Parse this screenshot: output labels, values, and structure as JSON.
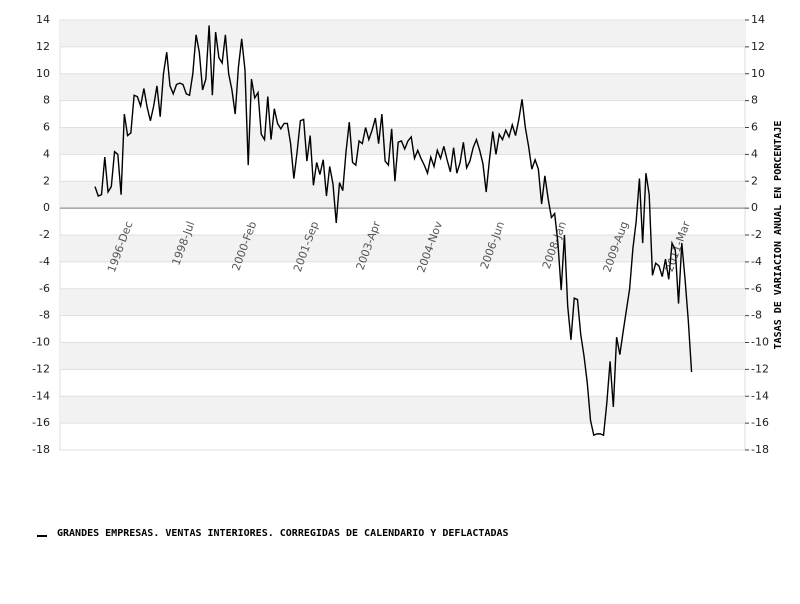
{
  "chart_data": {
    "type": "line",
    "y_axis_label": "TASAS DE VARIACION ANUAL EN PORCENTAJE",
    "categories": [
      null,
      null,
      null,
      null,
      null,
      null,
      null,
      "1996-Dec",
      null,
      null,
      null,
      null,
      null,
      null,
      null,
      null,
      null,
      null,
      null,
      null,
      null,
      null,
      null,
      null,
      null,
      null,
      "1998-Jul",
      null,
      null,
      null,
      null,
      null,
      null,
      null,
      null,
      null,
      null,
      null,
      null,
      null,
      null,
      null,
      null,
      null,
      null,
      "2000-Feb",
      null,
      null,
      null,
      null,
      null,
      null,
      null,
      null,
      null,
      null,
      null,
      null,
      null,
      null,
      null,
      null,
      null,
      null,
      "2001-Sep",
      null,
      null,
      null,
      null,
      null,
      null,
      null,
      null,
      null,
      null,
      null,
      null,
      null,
      null,
      null,
      null,
      null,
      null,
      "2003-Apr",
      null,
      null,
      null,
      null,
      null,
      null,
      null,
      null,
      null,
      null,
      null,
      null,
      null,
      null,
      null,
      null,
      null,
      null,
      "2004-Nov",
      null,
      null,
      null,
      null,
      null,
      null,
      null,
      null,
      null,
      null,
      null,
      null,
      null,
      null,
      null,
      null,
      null,
      null,
      "2006-Jun",
      null,
      null,
      null,
      null,
      null,
      null,
      null,
      null,
      null,
      null,
      null,
      null,
      null,
      null,
      null,
      null,
      null,
      null,
      "2008-Jan",
      null,
      null,
      null,
      null,
      null,
      null,
      null,
      null,
      null,
      null,
      null,
      null,
      null,
      null,
      null,
      null,
      null,
      null,
      "2009-Aug",
      null,
      null,
      null,
      null,
      null,
      null,
      null,
      null,
      null,
      null,
      null,
      null,
      null,
      null,
      null,
      null,
      null,
      null,
      "2011-Mar",
      null,
      null,
      null,
      null,
      null
    ],
    "series": [
      {
        "name": "GRANDES EMPRESAS. VENTAS INTERIORES. CORREGIDAS DE CALENDARIO Y DEFLACTADAS",
        "color": "#000000",
        "values": [
          1.6,
          0.9,
          1.0,
          3.8,
          1.2,
          1.6,
          4.2,
          4.0,
          1.0,
          7.0,
          5.4,
          5.6,
          8.4,
          8.3,
          7.6,
          8.9,
          7.5,
          6.5,
          7.6,
          9.1,
          6.8,
          10.0,
          11.6,
          9.1,
          8.5,
          9.2,
          9.3,
          9.2,
          8.5,
          8.4,
          10.0,
          12.9,
          11.6,
          8.8,
          9.6,
          13.6,
          8.4,
          13.1,
          11.2,
          10.8,
          12.9,
          10.0,
          8.8,
          7.0,
          10.5,
          12.6,
          10.3,
          3.2,
          9.6,
          8.2,
          8.6,
          5.5,
          5.1,
          8.3,
          5.1,
          7.4,
          6.3,
          5.9,
          6.3,
          6.3,
          4.8,
          2.2,
          4.2,
          6.5,
          6.6,
          3.5,
          5.4,
          1.7,
          3.4,
          2.5,
          3.6,
          0.9,
          3.1,
          1.8,
          -1.1,
          1.9,
          1.3,
          4.2,
          6.4,
          3.4,
          3.2,
          5.0,
          4.8,
          6.0,
          5.1,
          5.8,
          6.7,
          4.8,
          7.0,
          3.5,
          3.2,
          5.9,
          2.0,
          4.9,
          5.0,
          4.4,
          5.0,
          5.3,
          3.7,
          4.3,
          3.7,
          3.2,
          2.6,
          3.8,
          3.1,
          4.3,
          3.7,
          4.6,
          3.6,
          2.7,
          4.5,
          2.6,
          3.4,
          4.9,
          3.0,
          3.5,
          4.5,
          5.1,
          4.3,
          3.3,
          1.2,
          3.6,
          5.7,
          4.0,
          5.5,
          5.1,
          5.8,
          5.3,
          6.2,
          5.4,
          6.6,
          8.1,
          6.0,
          4.6,
          2.9,
          3.6,
          2.9,
          0.3,
          2.4,
          0.7,
          -0.7,
          -0.4,
          -2.6,
          -6.1,
          -2.0,
          -7.3,
          -9.8,
          -6.7,
          -6.8,
          -9.4,
          -11.0,
          -13.0,
          -15.8,
          -16.9,
          -16.8,
          -16.8,
          -16.9,
          -14.5,
          -11.4,
          -14.8,
          -9.6,
          -10.9,
          -9.2,
          -7.6,
          -6.0,
          -3.0,
          -1.0,
          2.2,
          -2.6,
          2.6,
          1.0,
          -5.0,
          -4.1,
          -4.3,
          -5.1,
          -3.8,
          -5.3,
          -2.6,
          -3.1,
          -7.1,
          -2.6,
          -5.3,
          -8.4,
          -12.2
        ]
      }
    ],
    "ylim": [
      -18,
      14
    ],
    "yticks": [
      -18,
      -16,
      -14,
      -12,
      -10,
      -8,
      -6,
      -4,
      -2,
      0,
      2,
      4,
      6,
      8,
      10,
      12,
      14
    ],
    "grid": true,
    "legend": "bottom-left"
  }
}
